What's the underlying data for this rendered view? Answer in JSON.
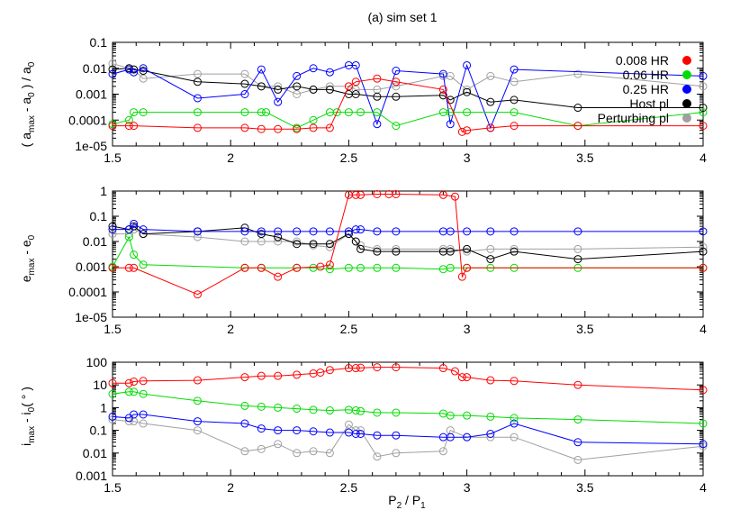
{
  "figure": {
    "title": "(a) sim set 1",
    "xlabel": "P2 / P1",
    "xticks": [
      "1.5",
      "2",
      "2.5",
      "3",
      "3.5",
      "4"
    ]
  },
  "legend": [
    {
      "label": "0.008 HR",
      "color": "#ff0000"
    },
    {
      "label": "0.06 HR",
      "color": "#00dd00"
    },
    {
      "label": "0.25 HR",
      "color": "#0000ff"
    },
    {
      "label": "Host pl",
      "color": "#000000"
    },
    {
      "label": "Perturbing pl",
      "color": "#a0a0a0"
    }
  ],
  "chart_data": [
    {
      "type": "line",
      "panel": "a",
      "ylabel": "( a_max - a_0 ) / a_0",
      "yscale": "log",
      "xlim": [
        1.5,
        4
      ],
      "ylim": [
        1e-05,
        0.1
      ],
      "yticks": [
        "1e-05",
        "0.0001",
        "0.001",
        "0.01",
        "0.1"
      ],
      "legend_position": "top-right",
      "series": [
        {
          "name": "0.008 HR",
          "color": "#ff0000",
          "x": [
            1.5,
            1.57,
            1.59,
            1.86,
            2.06,
            2.13,
            2.2,
            2.28,
            2.35,
            2.42,
            2.5,
            2.53,
            2.62,
            2.7,
            2.9,
            2.98,
            3.0,
            3.1,
            3.2,
            3.47,
            4.0
          ],
          "y": [
            6e-05,
            6e-05,
            6e-05,
            5e-05,
            5e-05,
            4.5e-05,
            4.5e-05,
            4.5e-05,
            5e-05,
            5e-05,
            0.002,
            0.003,
            0.004,
            0.003,
            0.0015,
            3.5e-05,
            4e-05,
            5e-05,
            6e-05,
            6e-05,
            6e-05
          ]
        },
        {
          "name": "0.06 HR",
          "color": "#00dd00",
          "x": [
            1.5,
            1.57,
            1.59,
            1.63,
            1.86,
            2.06,
            2.13,
            2.15,
            2.28,
            2.35,
            2.42,
            2.45,
            2.5,
            2.55,
            2.62,
            2.7,
            2.9,
            2.93,
            3.0,
            3.2,
            3.47,
            4.0
          ],
          "y": [
            7e-05,
            0.0001,
            0.0002,
            0.0002,
            0.0002,
            0.0002,
            0.0002,
            0.0002,
            5e-05,
            0.0001,
            0.0002,
            0.0002,
            0.0002,
            0.0002,
            0.0002,
            6e-05,
            0.0002,
            0.0002,
            0.0002,
            0.0002,
            6e-05,
            0.0002
          ]
        },
        {
          "name": "0.25 HR",
          "color": "#0000ff",
          "x": [
            1.5,
            1.57,
            1.59,
            1.63,
            1.86,
            2.06,
            2.13,
            2.2,
            2.28,
            2.35,
            2.42,
            2.5,
            2.53,
            2.62,
            2.7,
            2.9,
            2.93,
            3.0,
            3.1,
            3.2,
            4.0
          ],
          "y": [
            0.006,
            0.009,
            0.007,
            0.01,
            0.0007,
            0.001,
            0.009,
            0.0005,
            0.005,
            0.01,
            0.007,
            0.013,
            0.013,
            7e-05,
            0.008,
            0.006,
            7e-05,
            0.013,
            5e-05,
            0.009,
            0.005
          ]
        },
        {
          "name": "Host pl",
          "color": "#000000",
          "x": [
            1.5,
            1.57,
            1.59,
            1.63,
            1.86,
            2.06,
            2.13,
            2.2,
            2.28,
            2.35,
            2.42,
            2.5,
            2.53,
            2.62,
            2.7,
            2.9,
            2.93,
            3.0,
            3.1,
            3.2,
            3.47,
            4.0
          ],
          "y": [
            0.009,
            0.01,
            0.009,
            0.008,
            0.003,
            0.0025,
            0.002,
            0.0015,
            0.002,
            0.0015,
            0.0015,
            0.001,
            0.001,
            0.0008,
            0.0008,
            0.0009,
            0.0006,
            0.0012,
            0.0005,
            0.0006,
            0.0003,
            0.0003
          ]
        },
        {
          "name": "Perturbing pl",
          "color": "#a0a0a0",
          "x": [
            1.5,
            1.57,
            1.59,
            1.63,
            1.86,
            2.06,
            2.13,
            2.2,
            2.28,
            2.35,
            2.42,
            2.5,
            2.53,
            2.62,
            2.7,
            2.9,
            2.93,
            3.0,
            3.1,
            3.2,
            3.47,
            4.0
          ],
          "y": [
            0.015,
            0.01,
            0.009,
            0.004,
            0.006,
            0.006,
            0.002,
            0.002,
            0.001,
            0.0015,
            0.002,
            0.002,
            0.0015,
            0.0015,
            0.002,
            0.005,
            0.005,
            0.0015,
            0.005,
            0.003,
            0.006,
            0.002
          ]
        }
      ]
    },
    {
      "type": "line",
      "panel": "b",
      "ylabel": "e_max - e_0",
      "yscale": "log",
      "xlim": [
        1.5,
        4
      ],
      "ylim": [
        1e-05,
        1
      ],
      "yticks": [
        "1e-05",
        "0.0001",
        "0.001",
        "0.01",
        "0.1",
        "1"
      ],
      "series": [
        {
          "name": "0.008 HR",
          "color": "#ff0000",
          "x": [
            1.5,
            1.57,
            1.59,
            1.86,
            2.06,
            2.13,
            2.2,
            2.28,
            2.38,
            2.42,
            2.5,
            2.53,
            2.55,
            2.62,
            2.67,
            2.7,
            2.9,
            2.95,
            2.98,
            3.0,
            4.0
          ],
          "y": [
            0.0009,
            0.0009,
            0.0009,
            8e-05,
            0.0009,
            0.0009,
            0.0004,
            0.0009,
            0.001,
            0.0012,
            0.7,
            0.7,
            0.7,
            0.75,
            0.75,
            0.75,
            0.7,
            0.6,
            0.0004,
            0.0009,
            0.0009
          ]
        },
        {
          "name": "0.06 HR",
          "color": "#00dd00",
          "x": [
            1.5,
            1.57,
            1.59,
            1.63,
            2.06,
            2.13,
            2.28,
            2.35,
            2.42,
            2.5,
            2.55,
            2.62,
            2.7,
            2.9,
            2.93,
            3.0,
            3.1,
            3.2,
            3.47,
            4.0
          ],
          "y": [
            0.001,
            0.015,
            0.003,
            0.0012,
            0.0009,
            0.0009,
            0.0009,
            0.0009,
            0.0008,
            0.0009,
            0.0009,
            0.0009,
            0.0009,
            0.0008,
            0.0009,
            0.0009,
            0.0009,
            0.0009,
            0.0009,
            0.0009
          ]
        },
        {
          "name": "0.25 HR",
          "color": "#0000ff",
          "x": [
            1.5,
            1.57,
            1.59,
            1.63,
            1.86,
            2.06,
            2.13,
            2.2,
            2.28,
            2.35,
            2.42,
            2.5,
            2.53,
            2.55,
            2.62,
            2.7,
            2.9,
            2.93,
            3.0,
            3.1,
            3.2,
            3.47,
            4.0
          ],
          "y": [
            0.03,
            0.03,
            0.05,
            0.03,
            0.025,
            0.025,
            0.025,
            0.025,
            0.025,
            0.025,
            0.025,
            0.025,
            0.03,
            0.03,
            0.025,
            0.025,
            0.025,
            0.025,
            0.025,
            0.025,
            0.025,
            0.025,
            0.025
          ]
        },
        {
          "name": "Host pl",
          "color": "#000000",
          "x": [
            1.5,
            1.57,
            1.59,
            1.63,
            1.86,
            2.06,
            2.13,
            2.2,
            2.28,
            2.35,
            2.42,
            2.5,
            2.53,
            2.55,
            2.62,
            2.7,
            2.9,
            2.93,
            3.0,
            3.1,
            3.2,
            3.47,
            4.0
          ],
          "y": [
            0.04,
            0.03,
            0.04,
            0.02,
            0.025,
            0.035,
            0.02,
            0.015,
            0.008,
            0.008,
            0.008,
            0.02,
            0.01,
            0.005,
            0.004,
            0.004,
            0.004,
            0.004,
            0.005,
            0.002,
            0.004,
            0.002,
            0.004
          ]
        },
        {
          "name": "Perturbing pl",
          "color": "#a0a0a0",
          "x": [
            1.5,
            1.57,
            1.59,
            1.63,
            1.86,
            2.06,
            2.13,
            2.2,
            2.28,
            2.35,
            2.42,
            2.5,
            2.53,
            2.55,
            2.62,
            2.7,
            2.9,
            2.93,
            3.0,
            3.1,
            3.2,
            3.47,
            4.0
          ],
          "y": [
            0.02,
            0.02,
            0.03,
            0.02,
            0.015,
            0.01,
            0.01,
            0.01,
            0.01,
            0.007,
            0.006,
            0.02,
            0.01,
            0.007,
            0.005,
            0.005,
            0.005,
            0.005,
            0.004,
            0.005,
            0.005,
            0.005,
            0.006
          ]
        }
      ]
    },
    {
      "type": "line",
      "panel": "c",
      "ylabel": "i_max - i_0 ( ° )",
      "yscale": "log",
      "xlim": [
        1.5,
        4
      ],
      "ylim": [
        0.001,
        100
      ],
      "yticks": [
        "0.001",
        "0.01",
        "0.1",
        "1",
        "10",
        "100"
      ],
      "series": [
        {
          "name": "0.008 HR",
          "color": "#ff0000",
          "x": [
            1.5,
            1.57,
            1.59,
            1.63,
            1.86,
            2.06,
            2.13,
            2.2,
            2.28,
            2.35,
            2.38,
            2.42,
            2.5,
            2.53,
            2.55,
            2.62,
            2.7,
            2.9,
            2.95,
            2.98,
            3.0,
            3.1,
            3.2,
            3.47,
            4.0
          ],
          "y": [
            12,
            12,
            14,
            15,
            16,
            22,
            25,
            25,
            28,
            32,
            35,
            45,
            55,
            55,
            57,
            60,
            60,
            55,
            40,
            22,
            22,
            16,
            15,
            10,
            6
          ]
        },
        {
          "name": "0.06 HR",
          "color": "#00dd00",
          "x": [
            1.5,
            1.57,
            1.59,
            1.63,
            1.86,
            2.06,
            2.13,
            2.2,
            2.28,
            2.35,
            2.42,
            2.5,
            2.53,
            2.55,
            2.62,
            2.7,
            2.9,
            2.93,
            3.0,
            3.1,
            3.2,
            3.47,
            4.0
          ],
          "y": [
            4,
            5,
            5,
            4,
            2,
            1.2,
            1.1,
            1,
            0.9,
            0.8,
            0.75,
            0.8,
            0.75,
            0.7,
            0.6,
            0.6,
            0.55,
            0.45,
            0.45,
            0.4,
            0.35,
            0.3,
            0.2
          ]
        },
        {
          "name": "0.25 HR",
          "color": "#0000ff",
          "x": [
            1.5,
            1.57,
            1.59,
            1.63,
            1.86,
            2.06,
            2.13,
            2.2,
            2.28,
            2.35,
            2.42,
            2.5,
            2.53,
            2.55,
            2.62,
            2.7,
            2.9,
            2.93,
            3.0,
            3.1,
            3.2,
            3.47,
            4.0
          ],
          "y": [
            0.4,
            0.35,
            0.5,
            0.5,
            0.25,
            0.2,
            0.12,
            0.1,
            0.1,
            0.09,
            0.08,
            0.08,
            0.07,
            0.07,
            0.06,
            0.06,
            0.05,
            0.05,
            0.05,
            0.07,
            0.2,
            0.03,
            0.025
          ]
        },
        {
          "name": "Perturbing pl",
          "color": "#a0a0a0",
          "x": [
            1.5,
            1.57,
            1.59,
            1.63,
            1.86,
            2.06,
            2.13,
            2.2,
            2.28,
            2.35,
            2.42,
            2.5,
            2.53,
            2.55,
            2.62,
            2.7,
            2.9,
            2.93,
            3.0,
            3.1,
            3.2,
            3.47,
            4.0
          ],
          "y": [
            0.3,
            0.25,
            0.25,
            0.2,
            0.1,
            0.012,
            0.015,
            0.025,
            0.01,
            0.012,
            0.01,
            0.18,
            0.1,
            0.1,
            0.007,
            0.01,
            0.012,
            0.1,
            0.05,
            0.05,
            0.05,
            0.005,
            0.02
          ]
        }
      ]
    }
  ]
}
